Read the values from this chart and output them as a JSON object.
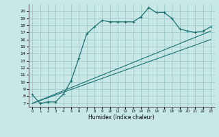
{
  "xlabel": "Humidex (Indice chaleur)",
  "bg_color": "#c8e8e8",
  "grid_color": "#a0c8c8",
  "line_color": "#1a7070",
  "xlim": [
    -0.5,
    23.5
  ],
  "ylim": [
    6.5,
    21.0
  ],
  "yticks": [
    7,
    8,
    9,
    10,
    11,
    12,
    13,
    14,
    15,
    16,
    17,
    18,
    19,
    20
  ],
  "xticks": [
    0,
    1,
    2,
    3,
    4,
    5,
    6,
    7,
    8,
    9,
    10,
    11,
    12,
    13,
    14,
    15,
    16,
    17,
    18,
    19,
    20,
    21,
    22,
    23
  ],
  "series": [
    [
      0,
      8.2
    ],
    [
      1,
      7.0
    ],
    [
      2,
      7.2
    ],
    [
      3,
      7.2
    ],
    [
      4,
      8.3
    ],
    [
      5,
      10.2
    ],
    [
      6,
      13.4
    ],
    [
      7,
      16.8
    ],
    [
      8,
      17.8
    ],
    [
      9,
      18.7
    ],
    [
      10,
      18.5
    ],
    [
      11,
      18.5
    ],
    [
      12,
      18.5
    ],
    [
      13,
      18.5
    ],
    [
      14,
      19.2
    ],
    [
      15,
      20.5
    ],
    [
      16,
      19.8
    ],
    [
      17,
      19.8
    ],
    [
      18,
      19.0
    ],
    [
      19,
      17.5
    ],
    [
      20,
      17.2
    ],
    [
      21,
      17.0
    ],
    [
      22,
      17.2
    ],
    [
      23,
      17.8
    ]
  ],
  "line2": [
    [
      0,
      7.0
    ],
    [
      23,
      17.2
    ]
  ],
  "line3": [
    [
      0,
      7.0
    ],
    [
      23,
      16.0
    ]
  ]
}
